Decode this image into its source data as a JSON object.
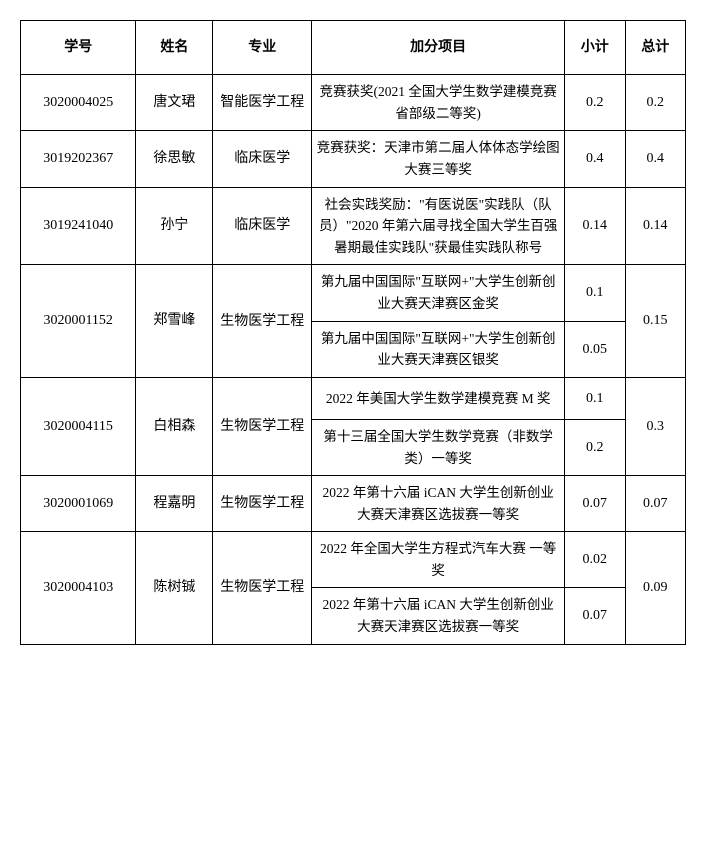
{
  "headers": {
    "id": "学号",
    "name": "姓名",
    "major": "专业",
    "item": "加分项目",
    "subtotal": "小计",
    "total": "总计"
  },
  "rows": [
    {
      "id": "3020004025",
      "name": "唐文珺",
      "major": "智能医学工程",
      "items": [
        {
          "desc": "竞赛获奖(2021 全国大学生数学建模竞赛省部级二等奖)",
          "subtotal": "0.2"
        }
      ],
      "total": "0.2"
    },
    {
      "id": "3019202367",
      "name": "徐思敏",
      "major": "临床医学",
      "items": [
        {
          "desc": "竞赛获奖：天津市第二届人体体态学绘图大赛三等奖",
          "subtotal": "0.4"
        }
      ],
      "total": "0.4"
    },
    {
      "id": "3019241040",
      "name": "孙宁",
      "major": "临床医学",
      "items": [
        {
          "desc": "社会实践奖励：\"有医说医\"实践队（队员）\"2020 年第六届寻找全国大学生百强暑期最佳实践队\"获最佳实践队称号",
          "subtotal": "0.14"
        }
      ],
      "total": "0.14"
    },
    {
      "id": "3020001152",
      "name": "郑雪峰",
      "major": "生物医学工程",
      "items": [
        {
          "desc": "第九届中国国际\"互联网+\"大学生创新创业大赛天津赛区金奖",
          "subtotal": "0.1"
        },
        {
          "desc": "第九届中国国际\"互联网+\"大学生创新创业大赛天津赛区银奖",
          "subtotal": "0.05"
        }
      ],
      "total": "0.15"
    },
    {
      "id": "3020004115",
      "name": "白相森",
      "major": "生物医学工程",
      "items": [
        {
          "desc": "2022 年美国大学生数学建模竞赛 M 奖",
          "subtotal": "0.1"
        },
        {
          "desc": "第十三届全国大学生数学竞赛（非数学类）一等奖",
          "subtotal": "0.2"
        }
      ],
      "total": "0.3"
    },
    {
      "id": "3020001069",
      "name": "程嘉明",
      "major": "生物医学工程",
      "items": [
        {
          "desc": "2022 年第十六届 iCAN 大学生创新创业大赛天津赛区选拔赛一等奖",
          "subtotal": "0.07"
        }
      ],
      "total": "0.07"
    },
    {
      "id": "3020004103",
      "name": "陈树铖",
      "major": "生物医学工程",
      "items": [
        {
          "desc": "2022 年全国大学生方程式汽车大赛 一等奖",
          "subtotal": "0.02"
        },
        {
          "desc": "2022 年第十六届 iCAN 大学生创新创业大赛天津赛区选拔赛一等奖",
          "subtotal": "0.07"
        }
      ],
      "total": "0.09"
    }
  ],
  "style": {
    "font_family": "SimSun",
    "border_color": "#000000",
    "background": "#ffffff",
    "header_fontsize": 14,
    "cell_fontsize": 14,
    "item_fontsize": 13.5
  }
}
